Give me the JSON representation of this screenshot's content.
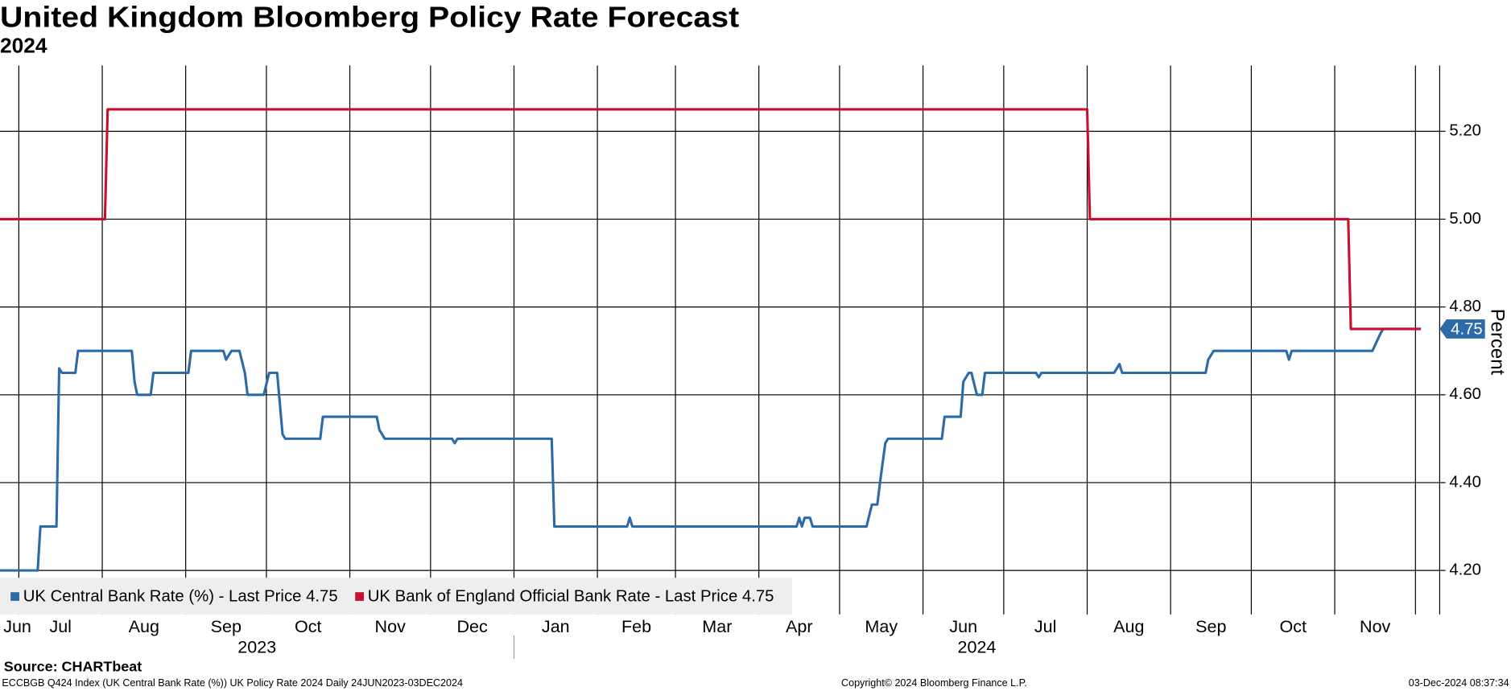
{
  "chart_data": {
    "type": "line",
    "title": "United Kingdom Bloomberg Policy Rate Forecast",
    "subtitle": "2024",
    "y_label": "Percent",
    "grid": true,
    "y_axis_side": "right",
    "legend": "bottom-left",
    "ylim": [
      4.1,
      5.35
    ],
    "yticks": [
      {
        "value": 4.2,
        "label": "4.20"
      },
      {
        "value": 4.4,
        "label": "4.40"
      },
      {
        "value": 4.6,
        "label": "4.60"
      },
      {
        "value": 4.8,
        "label": "4.80"
      },
      {
        "value": 5.0,
        "label": "5.00"
      },
      {
        "value": 5.2,
        "label": "5.20"
      }
    ],
    "xticks": [
      {
        "value": "2023-06",
        "label": "Jun"
      },
      {
        "value": "2023-07",
        "label": "Jul"
      },
      {
        "value": "2023-08",
        "label": "Aug"
      },
      {
        "value": "2023-09",
        "label": "Sep"
      },
      {
        "value": "2023-10",
        "label": "Oct"
      },
      {
        "value": "2023-11",
        "label": "Nov"
      },
      {
        "value": "2023-12",
        "label": "Dec"
      },
      {
        "value": "2024-01",
        "label": "Jan"
      },
      {
        "value": "2024-02",
        "label": "Feb"
      },
      {
        "value": "2024-03",
        "label": "Mar"
      },
      {
        "value": "2024-04",
        "label": "Apr"
      },
      {
        "value": "2024-05",
        "label": "May"
      },
      {
        "value": "2024-06",
        "label": "Jun"
      },
      {
        "value": "2024-07",
        "label": "Jul"
      },
      {
        "value": "2024-08",
        "label": "Aug"
      },
      {
        "value": "2024-09",
        "label": "Sep"
      },
      {
        "value": "2024-10",
        "label": "Oct"
      },
      {
        "value": "2024-11",
        "label": "Nov"
      },
      {
        "value": "2024-12",
        "label": null
      }
    ],
    "years": [
      "2023",
      "2024"
    ],
    "series": [
      {
        "name": "UK Central Bank Rate (%) - Last Price 4.75",
        "color": "#2d6aa8",
        "x": [
          "2023-06-24",
          "2023-07-08",
          "2023-07-09",
          "2023-07-15",
          "2023-07-16",
          "2023-07-17",
          "2023-07-22",
          "2023-07-23",
          "2023-08-12",
          "2023-08-13",
          "2023-08-14",
          "2023-08-19",
          "2023-08-20",
          "2023-09-02",
          "2023-09-03",
          "2023-09-15",
          "2023-09-16",
          "2023-09-18",
          "2023-09-21",
          "2023-09-23",
          "2023-09-24",
          "2023-09-30",
          "2023-10-02",
          "2023-10-05",
          "2023-10-07",
          "2023-10-08",
          "2023-10-21",
          "2023-10-22",
          "2023-11-11",
          "2023-11-12",
          "2023-11-14",
          "2023-12-09",
          "2023-12-10",
          "2023-12-11",
          "2024-01-15",
          "2024-01-16",
          "2024-02-12",
          "2024-02-13",
          "2024-02-14",
          "2024-04-15",
          "2024-04-16",
          "2024-04-17",
          "2024-04-18",
          "2024-04-20",
          "2024-04-21",
          "2024-05-11",
          "2024-05-13",
          "2024-05-15",
          "2024-05-16",
          "2024-05-18",
          "2024-05-19",
          "2024-06-08",
          "2024-06-09",
          "2024-06-15",
          "2024-06-16",
          "2024-06-18",
          "2024-06-19",
          "2024-06-21",
          "2024-06-23",
          "2024-06-24",
          "2024-07-13",
          "2024-07-14",
          "2024-07-15",
          "2024-08-11",
          "2024-08-13",
          "2024-08-14",
          "2024-09-14",
          "2024-09-15",
          "2024-09-17",
          "2024-10-14",
          "2024-10-15",
          "2024-10-16",
          "2024-11-15",
          "2024-11-18",
          "2024-11-19",
          "2024-12-03"
        ],
        "values": [
          4.2,
          4.2,
          4.3,
          4.3,
          4.66,
          4.65,
          4.65,
          4.7,
          4.7,
          4.63,
          4.6,
          4.6,
          4.65,
          4.65,
          4.7,
          4.7,
          4.68,
          4.7,
          4.7,
          4.65,
          4.6,
          4.6,
          4.65,
          4.65,
          4.51,
          4.5,
          4.5,
          4.55,
          4.55,
          4.52,
          4.5,
          4.5,
          4.49,
          4.5,
          4.5,
          4.3,
          4.3,
          4.32,
          4.3,
          4.3,
          4.32,
          4.3,
          4.32,
          4.32,
          4.3,
          4.3,
          4.35,
          4.35,
          4.4,
          4.49,
          4.5,
          4.5,
          4.55,
          4.55,
          4.63,
          4.65,
          4.65,
          4.6,
          4.6,
          4.65,
          4.65,
          4.64,
          4.65,
          4.65,
          4.67,
          4.65,
          4.65,
          4.68,
          4.7,
          4.7,
          4.68,
          4.7,
          4.7,
          4.74,
          4.75,
          4.75
        ]
      },
      {
        "name": "UK Bank of England Official Bank Rate - Last Price 4.75",
        "color": "#c8102e",
        "x": [
          "2023-06-24",
          "2023-08-02",
          "2023-08-03",
          "2024-08-01",
          "2024-08-02",
          "2024-11-06",
          "2024-11-07",
          "2024-12-03"
        ],
        "values": [
          5.0,
          5.0,
          5.25,
          5.25,
          5.0,
          5.0,
          4.75,
          4.75
        ]
      }
    ],
    "source": "Source: CHARTbeat",
    "footnote": "ECCBGB Q424 Index (UK Central Bank Rate (%)) UK Policy Rate 2024  Daily 24JUN2023-03DEC2024",
    "copyright": "Copyright© 2024 Bloomberg Finance L.P.",
    "timestamp": "03-Dec-2024 08:37:34"
  }
}
